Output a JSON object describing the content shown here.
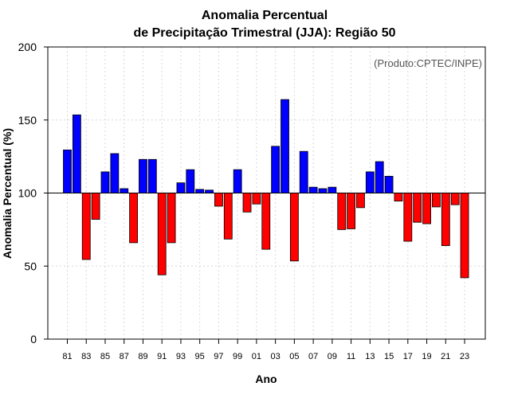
{
  "chart_data": {
    "type": "bar",
    "title_line1": "Anomalia Percentual",
    "title_line2": "de Precipitação Trimestral (JJA): Região 50",
    "xlabel": "Ano",
    "ylabel": "Anomalia Percentual (%)",
    "credit": "(Produto:CPTEC/INPE)",
    "baseline": 100,
    "ylim": [
      0,
      200
    ],
    "yticks": [
      0,
      50,
      100,
      150,
      200
    ],
    "categories": [
      "81",
      "82",
      "83",
      "84",
      "85",
      "86",
      "87",
      "88",
      "89",
      "90",
      "91",
      "92",
      "93",
      "94",
      "95",
      "96",
      "97",
      "98",
      "99",
      "00",
      "01",
      "02",
      "03",
      "04",
      "05",
      "06",
      "07",
      "08",
      "09",
      "10",
      "11",
      "12",
      "13",
      "14",
      "15",
      "16",
      "17",
      "18",
      "19",
      "20",
      "21",
      "22",
      "23"
    ],
    "xtick_labels": [
      "81",
      "83",
      "85",
      "87",
      "89",
      "91",
      "93",
      "95",
      "97",
      "99",
      "01",
      "03",
      "05",
      "07",
      "09",
      "11",
      "13",
      "15",
      "17",
      "19",
      "21",
      "23"
    ],
    "values": [
      129.5,
      153.5,
      54.5,
      82,
      114.5,
      127,
      103,
      66,
      123,
      123,
      44,
      66,
      107,
      116,
      102.5,
      102,
      91,
      68.5,
      116,
      87,
      92.5,
      61.5,
      132,
      164,
      53.5,
      128.5,
      104,
      103,
      104,
      75,
      75.5,
      90,
      114.5,
      121.5,
      111.5,
      94.5,
      67,
      80,
      79,
      90.5,
      64,
      92,
      42
    ],
    "colors": {
      "above": "#0000ff",
      "below": "#ff0000",
      "outline": "#000000"
    }
  }
}
